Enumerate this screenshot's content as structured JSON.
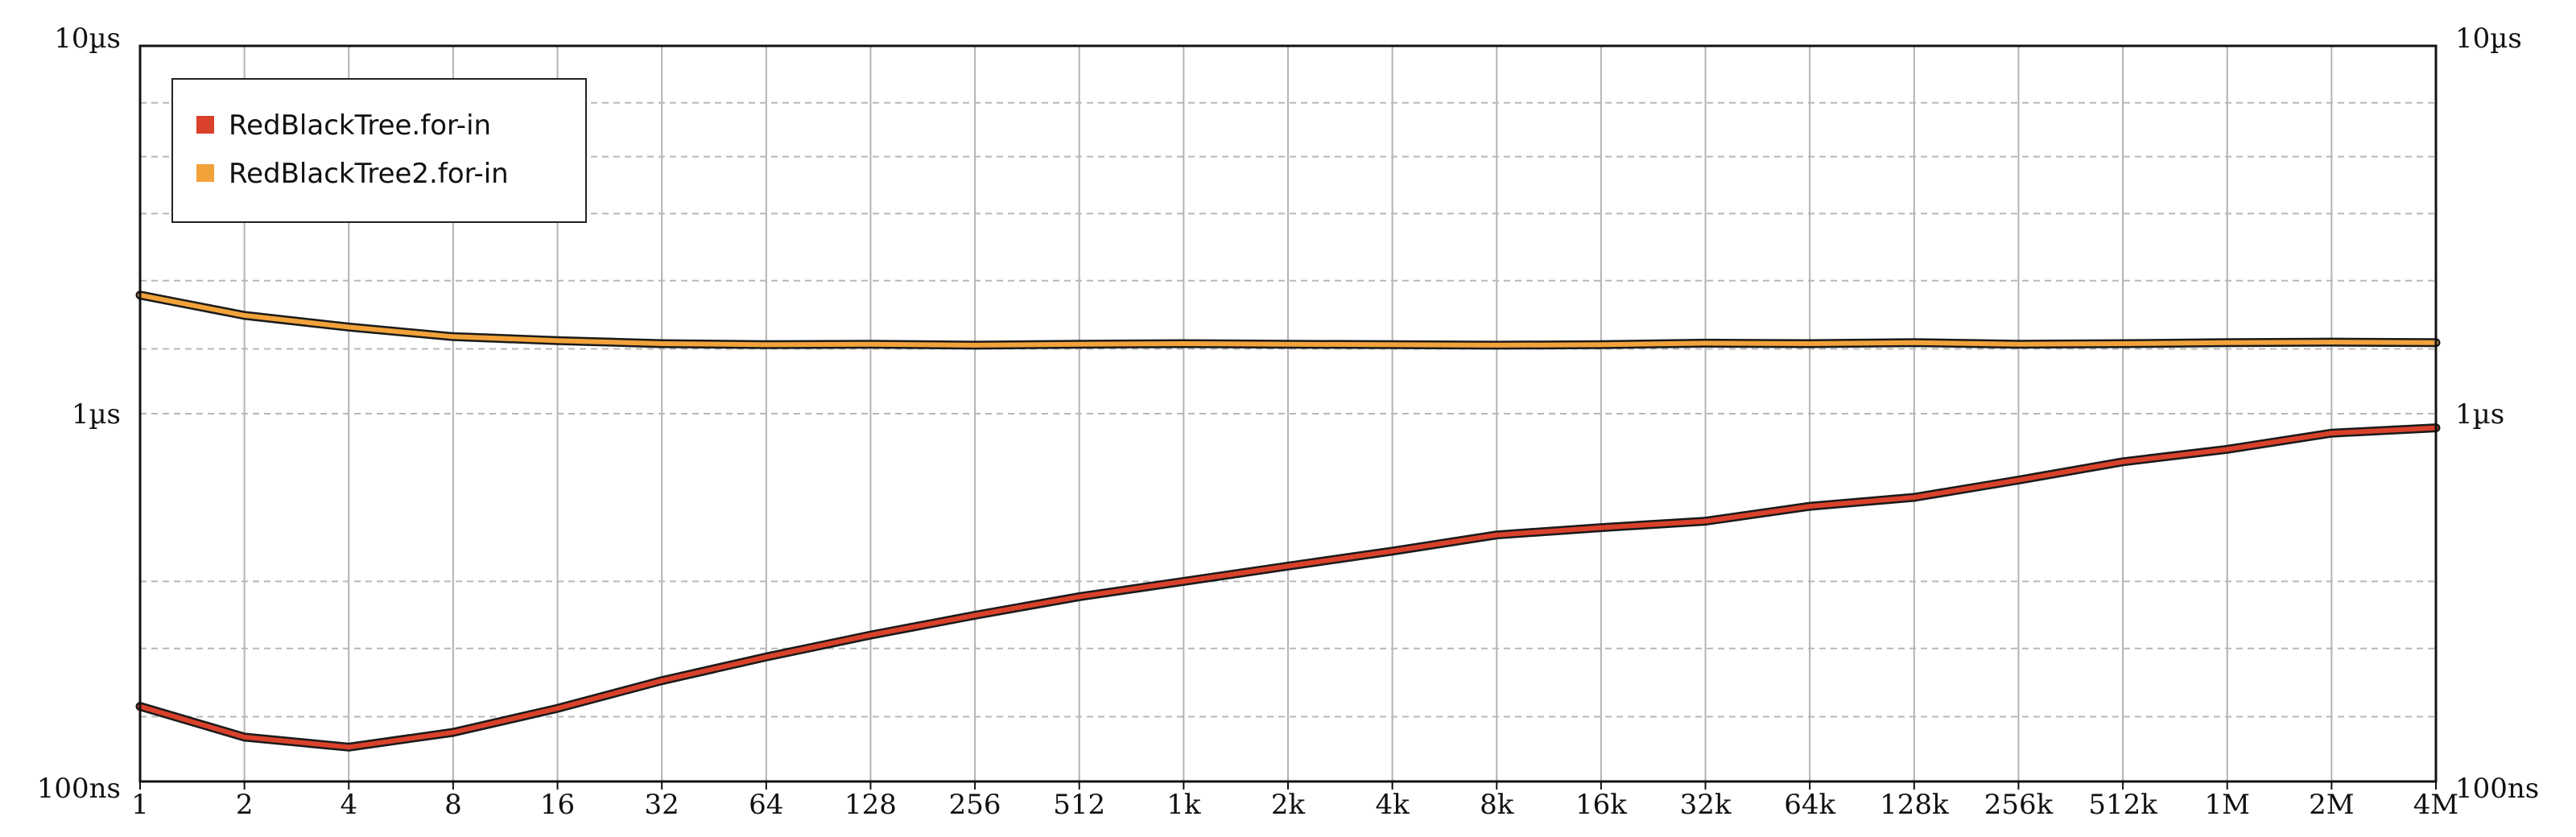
{
  "chart_data": {
    "type": "line",
    "y_scale": "log",
    "x_scale": "log2",
    "ylim": [
      "100ns",
      "10µs"
    ],
    "xlim": [
      "1",
      "4M"
    ],
    "grid": true,
    "legend_placement": "top-left",
    "x_tick_labels": [
      "1",
      "2",
      "4",
      "8",
      "16",
      "32",
      "64",
      "128",
      "256",
      "512",
      "1k",
      "2k",
      "4k",
      "8k",
      "16k",
      "32k",
      "64k",
      "128k",
      "256k",
      "512k",
      "1M",
      "2M",
      "4M"
    ],
    "y_tick_labels_left": [
      "10µs",
      "1µs",
      "100ns"
    ],
    "y_tick_labels_right": [
      "10µs",
      "1µs",
      "100ns"
    ],
    "series": [
      {
        "name": "RedBlackTree.for-in",
        "color": "#d9412b",
        "x": [
          1,
          2,
          4,
          8,
          16,
          32,
          64,
          128,
          256,
          512,
          1024,
          2048,
          4096,
          8192,
          16384,
          32768,
          65536,
          131072,
          262144,
          524288,
          1048576,
          2097152,
          4194304
        ],
        "y_ns": [
          160,
          132,
          124,
          136,
          158,
          188,
          218,
          250,
          283,
          318,
          350,
          385,
          423,
          468,
          490,
          510,
          560,
          592,
          660,
          740,
          800,
          885,
          915
        ]
      },
      {
        "name": "RedBlackTree2.for-in",
        "color": "#f2a23a",
        "x": [
          1,
          2,
          4,
          8,
          16,
          32,
          64,
          128,
          256,
          512,
          1024,
          2048,
          4096,
          8192,
          16384,
          32768,
          65536,
          131072,
          262144,
          524288,
          1048576,
          2097152,
          4194304
        ],
        "y_ns": [
          2100,
          1850,
          1720,
          1620,
          1580,
          1550,
          1540,
          1545,
          1535,
          1545,
          1550,
          1545,
          1540,
          1535,
          1540,
          1555,
          1550,
          1560,
          1545,
          1550,
          1560,
          1565,
          1560
        ]
      }
    ]
  }
}
